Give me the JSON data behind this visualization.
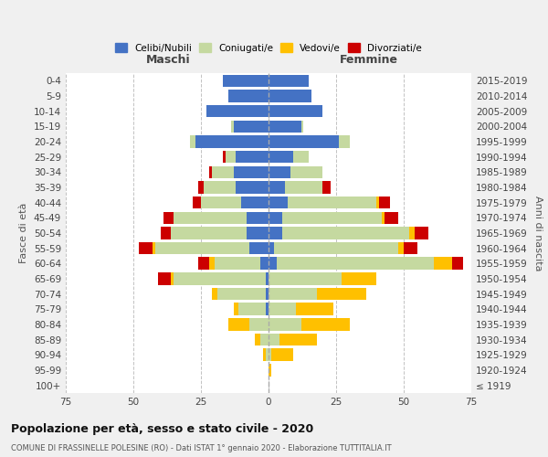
{
  "age_groups": [
    "0-4",
    "5-9",
    "10-14",
    "15-19",
    "20-24",
    "25-29",
    "30-34",
    "35-39",
    "40-44",
    "45-49",
    "50-54",
    "55-59",
    "60-64",
    "65-69",
    "70-74",
    "75-79",
    "80-84",
    "85-89",
    "90-94",
    "95-99",
    "100+"
  ],
  "birth_years": [
    "2015-2019",
    "2010-2014",
    "2005-2009",
    "2000-2004",
    "1995-1999",
    "1990-1994",
    "1985-1989",
    "1980-1984",
    "1975-1979",
    "1970-1974",
    "1965-1969",
    "1960-1964",
    "1955-1959",
    "1950-1954",
    "1945-1949",
    "1940-1944",
    "1935-1939",
    "1930-1934",
    "1925-1929",
    "1920-1924",
    "≤ 1919"
  ],
  "maschi": {
    "celibi": [
      17,
      15,
      23,
      13,
      27,
      12,
      13,
      12,
      10,
      8,
      8,
      7,
      3,
      1,
      1,
      1,
      0,
      0,
      0,
      0,
      0
    ],
    "coniugati": [
      0,
      0,
      0,
      1,
      2,
      4,
      8,
      12,
      15,
      27,
      28,
      35,
      17,
      34,
      18,
      10,
      7,
      3,
      1,
      0,
      0
    ],
    "vedovi": [
      0,
      0,
      0,
      0,
      0,
      0,
      0,
      0,
      0,
      0,
      0,
      1,
      2,
      1,
      2,
      2,
      8,
      2,
      1,
      0,
      0
    ],
    "divorziati": [
      0,
      0,
      0,
      0,
      0,
      1,
      1,
      2,
      3,
      4,
      4,
      5,
      4,
      5,
      0,
      0,
      0,
      0,
      0,
      0,
      0
    ]
  },
  "femmine": {
    "nubili": [
      15,
      16,
      20,
      12,
      26,
      9,
      8,
      6,
      7,
      5,
      5,
      2,
      3,
      0,
      0,
      0,
      0,
      0,
      0,
      0,
      0
    ],
    "coniugate": [
      0,
      0,
      0,
      1,
      4,
      6,
      12,
      14,
      33,
      37,
      47,
      46,
      58,
      27,
      18,
      10,
      12,
      4,
      1,
      0,
      0
    ],
    "vedove": [
      0,
      0,
      0,
      0,
      0,
      0,
      0,
      0,
      1,
      1,
      2,
      2,
      7,
      13,
      18,
      14,
      18,
      14,
      8,
      1,
      0
    ],
    "divorziate": [
      0,
      0,
      0,
      0,
      0,
      0,
      0,
      3,
      4,
      5,
      5,
      5,
      4,
      0,
      0,
      0,
      0,
      0,
      0,
      0,
      0
    ]
  },
  "colors": {
    "celibi": "#4472c4",
    "coniugati": "#c5d9a0",
    "vedovi": "#ffc000",
    "divorziati": "#cc0000"
  },
  "xlim": 75,
  "title": "Popolazione per età, sesso e stato civile - 2020",
  "subtitle": "COMUNE DI FRASSINELLE POLESINE (RO) - Dati ISTAT 1° gennaio 2020 - Elaborazione TUTTITALIA.IT",
  "xlabel_left": "Maschi",
  "xlabel_right": "Femmine",
  "ylabel_left": "Fasce di età",
  "ylabel_right": "Anni di nascita",
  "legend_labels": [
    "Celibi/Nubili",
    "Coniugati/e",
    "Vedovi/e",
    "Divorziati/e"
  ],
  "bg_color": "#f0f0f0",
  "plot_bg_color": "#ffffff"
}
